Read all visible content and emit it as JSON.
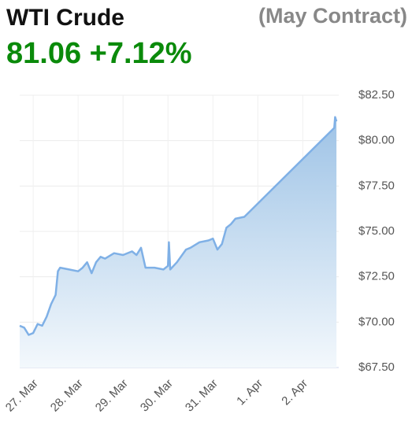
{
  "chart_data": {
    "type": "area",
    "title": "WTI Crude",
    "subtitle": "(May Contract)",
    "price": "81.06",
    "change": "+7.12%",
    "x": [
      -0.3,
      -0.2,
      -0.1,
      0.0,
      0.1,
      0.2,
      0.3,
      0.4,
      0.5,
      0.55,
      0.6,
      0.8,
      1.0,
      1.1,
      1.2,
      1.3,
      1.4,
      1.5,
      1.6,
      1.8,
      2.0,
      2.2,
      2.3,
      2.4,
      2.5,
      2.7,
      2.9,
      3.0,
      3.02,
      3.05,
      3.2,
      3.4,
      3.5,
      3.7,
      3.9,
      4.0,
      4.1,
      4.2,
      4.3,
      4.4,
      4.5,
      4.7,
      6.7,
      6.72,
      6.75
    ],
    "values": [
      69.8,
      69.7,
      69.3,
      69.4,
      69.9,
      69.8,
      70.3,
      71.0,
      71.5,
      72.8,
      73.0,
      72.9,
      72.8,
      73.0,
      73.3,
      72.7,
      73.3,
      73.6,
      73.5,
      73.8,
      73.7,
      73.9,
      73.7,
      74.1,
      73.0,
      73.0,
      72.9,
      73.1,
      74.4,
      72.9,
      73.3,
      74.0,
      74.1,
      74.4,
      74.5,
      74.6,
      74.0,
      74.3,
      75.2,
      75.4,
      75.7,
      75.8,
      80.7,
      81.3,
      81.06
    ],
    "color": "#7fb0e6",
    "xlim": [
      -0.3,
      6.8
    ],
    "xticks": [
      {
        "value": 0,
        "label": "27. Mar"
      },
      {
        "value": 1,
        "label": "28. Mar"
      },
      {
        "value": 2,
        "label": "29. Mar"
      },
      {
        "value": 3,
        "label": "30. Mar"
      },
      {
        "value": 4,
        "label": "31. Mar"
      },
      {
        "value": 5,
        "label": "1. Apr"
      },
      {
        "value": 6,
        "label": "2. Apr"
      }
    ],
    "ylim": [
      67.5,
      82.5
    ],
    "yticks": [
      {
        "value": 67.5,
        "label": "$67.50"
      },
      {
        "value": 70,
        "label": "$70.00"
      },
      {
        "value": 72.5,
        "label": "$72.50"
      },
      {
        "value": 75,
        "label": "$75.00"
      },
      {
        "value": 77.5,
        "label": "$77.50"
      },
      {
        "value": 80,
        "label": "$80.00"
      },
      {
        "value": 82.5,
        "label": "$82.50"
      }
    ],
    "grid": true
  }
}
